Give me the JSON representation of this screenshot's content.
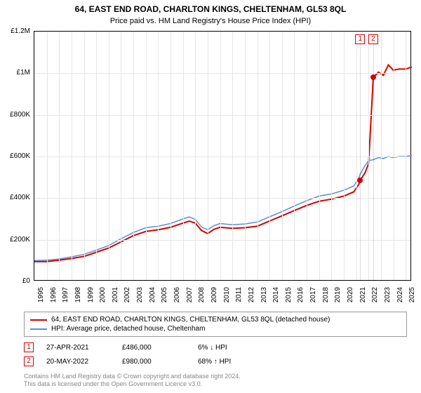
{
  "title": "64, EAST END ROAD, CHARLTON KINGS, CHELTENHAM, GL53 8QL",
  "subtitle": "Price paid vs. HM Land Registry's House Price Index (HPI)",
  "chart": {
    "type": "line",
    "x_start_year": 1995,
    "x_end_year": 2025,
    "x_ticks": [
      1995,
      1996,
      1997,
      1998,
      1999,
      2000,
      2001,
      2002,
      2003,
      2004,
      2005,
      2006,
      2007,
      2008,
      2009,
      2010,
      2011,
      2012,
      2013,
      2014,
      2015,
      2016,
      2017,
      2018,
      2019,
      2020,
      2021,
      2022,
      2023,
      2024,
      2025
    ],
    "ylim": [
      0,
      1200000
    ],
    "y_ticks": [
      {
        "v": 0,
        "label": "£0"
      },
      {
        "v": 200000,
        "label": "£200K"
      },
      {
        "v": 400000,
        "label": "£400K"
      },
      {
        "v": 600000,
        "label": "£600K"
      },
      {
        "v": 800000,
        "label": "£800K"
      },
      {
        "v": 1000000,
        "label": "£1M"
      },
      {
        "v": 1200000,
        "label": "£1.2M"
      }
    ],
    "grid_color": "#e6e6e6",
    "background_color": "#ffffff",
    "border_color": "#000000",
    "series": [
      {
        "name": "price-paid",
        "color": "#d40000",
        "width": 2,
        "label": "64, EAST END ROAD, CHARLTON KINGS, CHELTENHAM, GL53 8QL (detached house)",
        "points": [
          [
            1995,
            95000
          ],
          [
            1996,
            95000
          ],
          [
            1997,
            102000
          ],
          [
            1998,
            110000
          ],
          [
            1999,
            120000
          ],
          [
            2000,
            140000
          ],
          [
            2001,
            160000
          ],
          [
            2002,
            190000
          ],
          [
            2003,
            220000
          ],
          [
            2004,
            240000
          ],
          [
            2005,
            248000
          ],
          [
            2006,
            260000
          ],
          [
            2007,
            280000
          ],
          [
            2007.5,
            290000
          ],
          [
            2008,
            280000
          ],
          [
            2008.5,
            245000
          ],
          [
            2009,
            230000
          ],
          [
            2009.5,
            250000
          ],
          [
            2010,
            260000
          ],
          [
            2011,
            255000
          ],
          [
            2012,
            258000
          ],
          [
            2013,
            265000
          ],
          [
            2014,
            290000
          ],
          [
            2015,
            315000
          ],
          [
            2016,
            340000
          ],
          [
            2017,
            365000
          ],
          [
            2018,
            385000
          ],
          [
            2019,
            395000
          ],
          [
            2020,
            410000
          ],
          [
            2020.8,
            430000
          ],
          [
            2021.2,
            465000
          ],
          [
            2021.32,
            486000
          ],
          [
            2021.7,
            520000
          ],
          [
            2022.0,
            565000
          ],
          [
            2022.38,
            980000
          ],
          [
            2022.8,
            1005000
          ],
          [
            2023.2,
            990000
          ],
          [
            2023.6,
            1040000
          ],
          [
            2024,
            1015000
          ],
          [
            2024.5,
            1020000
          ],
          [
            2025,
            1020000
          ],
          [
            2025.5,
            1030000
          ]
        ]
      },
      {
        "name": "hpi",
        "color": "#5b8fd6",
        "width": 1.5,
        "label": "HPI: Average price, detached house, Cheltenham",
        "points": [
          [
            1995,
            100000
          ],
          [
            1996,
            102000
          ],
          [
            1997,
            108000
          ],
          [
            1998,
            118000
          ],
          [
            1999,
            130000
          ],
          [
            2000,
            150000
          ],
          [
            2001,
            172000
          ],
          [
            2002,
            205000
          ],
          [
            2003,
            235000
          ],
          [
            2004,
            258000
          ],
          [
            2005,
            265000
          ],
          [
            2006,
            278000
          ],
          [
            2007,
            300000
          ],
          [
            2007.5,
            310000
          ],
          [
            2008,
            298000
          ],
          [
            2008.5,
            262000
          ],
          [
            2009,
            248000
          ],
          [
            2009.5,
            268000
          ],
          [
            2010,
            278000
          ],
          [
            2011,
            272000
          ],
          [
            2012,
            276000
          ],
          [
            2013,
            285000
          ],
          [
            2014,
            310000
          ],
          [
            2015,
            335000
          ],
          [
            2016,
            362000
          ],
          [
            2017,
            388000
          ],
          [
            2018,
            410000
          ],
          [
            2019,
            420000
          ],
          [
            2020,
            438000
          ],
          [
            2020.8,
            458000
          ],
          [
            2021.2,
            495000
          ],
          [
            2021.32,
            515000
          ],
          [
            2021.7,
            555000
          ],
          [
            2022.0,
            580000
          ],
          [
            2022.38,
            585000
          ],
          [
            2022.8,
            595000
          ],
          [
            2023.2,
            590000
          ],
          [
            2023.6,
            600000
          ],
          [
            2024,
            595000
          ],
          [
            2024.5,
            600000
          ],
          [
            2025,
            600000
          ],
          [
            2025.5,
            605000
          ]
        ]
      }
    ],
    "markers": [
      {
        "n": "1",
        "year": 2021.32,
        "value": 486000,
        "color": "#d40000"
      },
      {
        "n": "2",
        "year": 2022.38,
        "value": 980000,
        "color": "#d40000"
      }
    ]
  },
  "sales": [
    {
      "n": "1",
      "color": "#d40000",
      "date": "27-APR-2021",
      "price": "£486,000",
      "pct": "6%",
      "dir": "↓",
      "vs": "HPI"
    },
    {
      "n": "2",
      "color": "#d40000",
      "date": "20-MAY-2022",
      "price": "£980,000",
      "pct": "68%",
      "dir": "↑",
      "vs": "HPI"
    }
  ],
  "footer": {
    "line1": "Contains HM Land Registry data © Crown copyright and database right 2024.",
    "line2": "This data is licensed under the Open Government Licence v3.0."
  }
}
